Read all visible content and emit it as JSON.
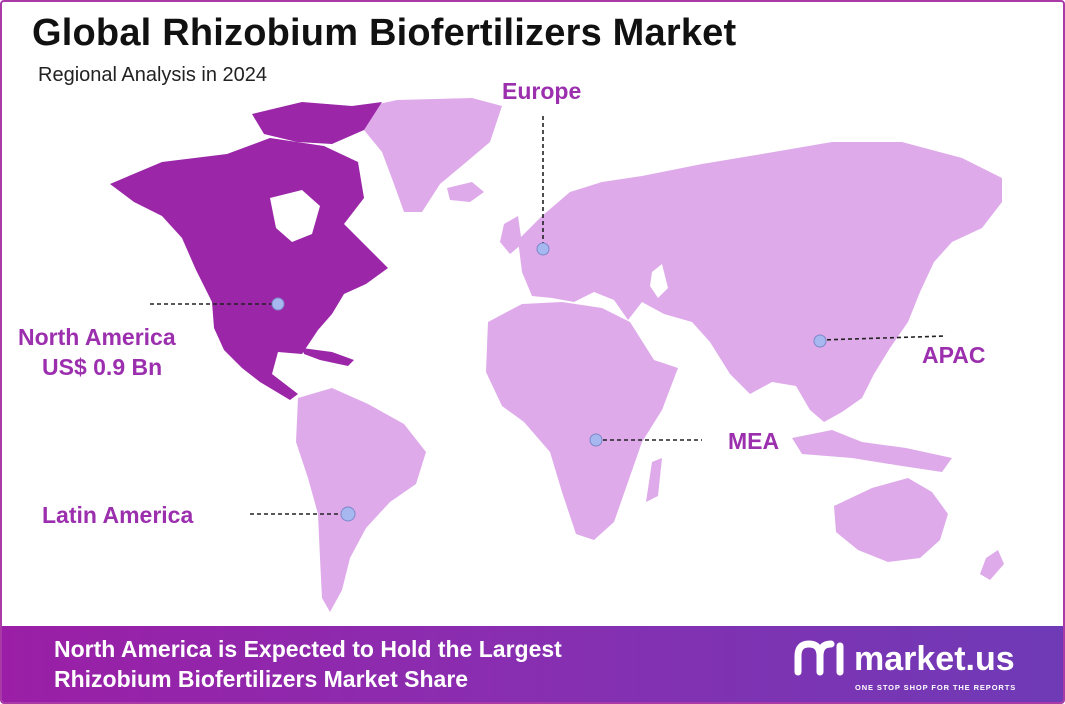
{
  "header": {
    "title": "Global Rhizobium Biofertilizers Market",
    "subtitle": "Regional Analysis in 2024"
  },
  "colors": {
    "highlight_region": "#9b27a8",
    "other_regions": "#deaaea",
    "label": "#9b2fae",
    "marker": "#a7b7ef",
    "footer_start": "#9a1fa6",
    "footer_end": "#6f3ab6"
  },
  "regions": {
    "north_america": {
      "name": "North America",
      "value": "US$ 0.9 Bn",
      "highlighted": true
    },
    "europe": {
      "name": "Europe"
    },
    "apac": {
      "name": "APAC"
    },
    "mea": {
      "name": "MEA"
    },
    "latin_america": {
      "name": "Latin America"
    }
  },
  "footer": {
    "line1": "North America is Expected to Hold the Largest",
    "line2": "Rhizobium Biofertilizers Market Share",
    "brand": {
      "icon": "market-us-logo-icon",
      "name": "market.us",
      "tagline": "ONE STOP SHOP FOR THE REPORTS"
    }
  }
}
